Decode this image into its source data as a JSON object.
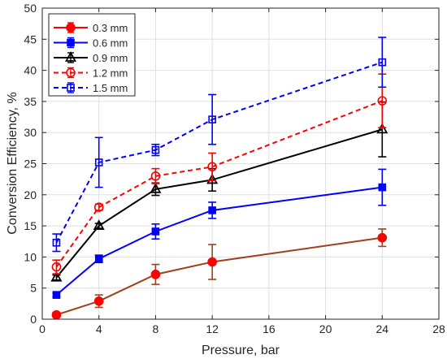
{
  "chart_data": {
    "type": "line",
    "xlabel": "Pressure, bar",
    "ylabel": "Conversion Efficiency, %",
    "xlim": [
      0,
      28
    ],
    "ylim": [
      0,
      50
    ],
    "xticks": [
      0,
      4,
      8,
      12,
      16,
      20,
      24,
      28
    ],
    "yticks": [
      0,
      5,
      10,
      15,
      20,
      25,
      30,
      35,
      40,
      45,
      50
    ],
    "grid": true,
    "legend_position": "top-left",
    "x": [
      1,
      4,
      8,
      12,
      24
    ],
    "series": [
      {
        "name": "0.3 mm",
        "color": "#ff0000",
        "line_color": "#a0401a",
        "dash": "solid",
        "marker": "circle-filled",
        "values": [
          0.7,
          2.9,
          7.2,
          9.2,
          13.1
        ],
        "errors": [
          0.4,
          1.0,
          1.6,
          2.8,
          1.4
        ]
      },
      {
        "name": "0.6 mm",
        "color": "#0000ff",
        "line_color": "#0000ff",
        "dash": "solid",
        "marker": "square-filled",
        "values": [
          3.9,
          9.7,
          14.1,
          17.5,
          21.2
        ],
        "errors": [
          0.3,
          0.6,
          1.2,
          1.3,
          2.9
        ]
      },
      {
        "name": "0.9 mm",
        "color": "#000000",
        "line_color": "#000000",
        "dash": "solid",
        "marker": "triangle-open",
        "values": [
          6.7,
          15.0,
          20.9,
          22.4,
          30.5
        ],
        "errors": [
          0.4,
          0.4,
          1.0,
          1.8,
          4.4
        ]
      },
      {
        "name": "1.2 mm",
        "color": "#ff0000",
        "line_color": "#ff0000",
        "dash": "dashed",
        "marker": "circle-open",
        "values": [
          8.4,
          18.0,
          23.0,
          24.5,
          35.1
        ],
        "errors": [
          1.1,
          0.5,
          1.2,
          2.2,
          4.3
        ]
      },
      {
        "name": "1.5 mm",
        "color": "#0000ff",
        "line_color": "#0000ff",
        "dash": "dashed",
        "marker": "square-open",
        "values": [
          12.3,
          25.2,
          27.2,
          32.1,
          41.3
        ],
        "errors": [
          1.4,
          4.0,
          0.9,
          4.0,
          4.0
        ]
      }
    ]
  }
}
